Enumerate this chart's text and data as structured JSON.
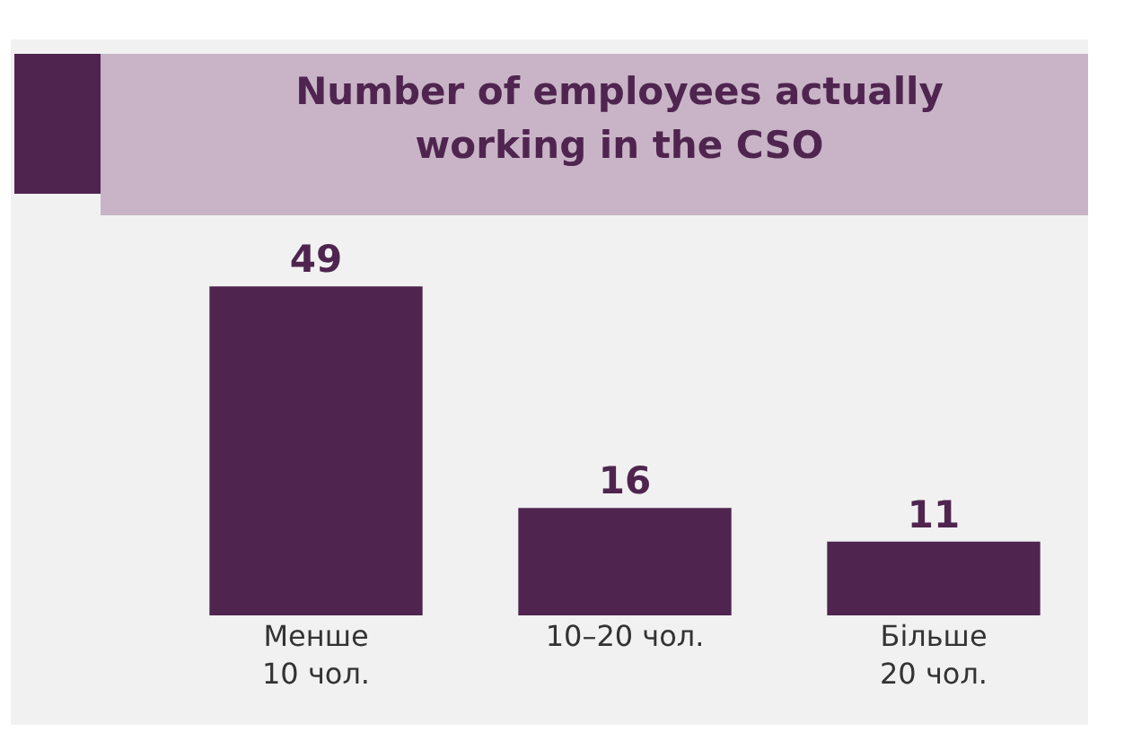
{
  "chart_data": {
    "type": "bar",
    "title": "Number of employees actually working in the CSO",
    "categories": [
      "Менше\n10 чол.",
      "10–20 чол.",
      "Більше\n20 чол."
    ],
    "values": [
      49,
      16,
      11
    ],
    "color": "#4f2550",
    "data_labels": true
  }
}
